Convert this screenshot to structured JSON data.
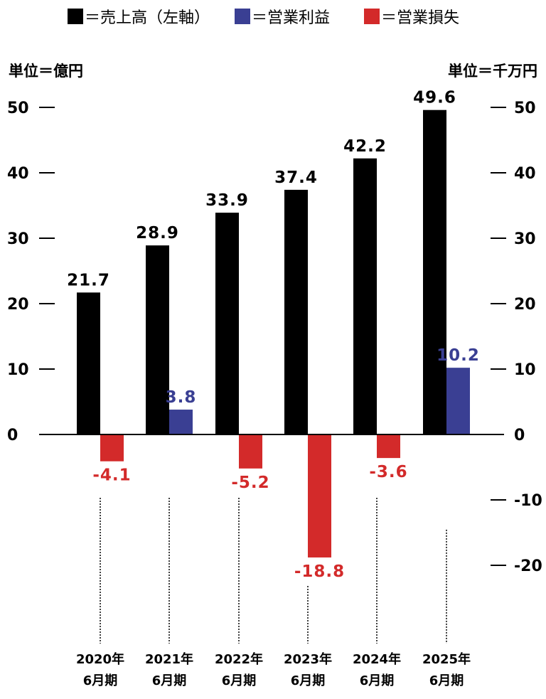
{
  "chart_data": {
    "type": "bar",
    "title": "",
    "legend": {
      "placement": "top",
      "entries": [
        {
          "key": "sales",
          "label": "＝売上高（左軸）",
          "color": "#000000"
        },
        {
          "key": "profit",
          "label": "＝営業利益",
          "color": "#3a3f93"
        },
        {
          "key": "loss",
          "label": "＝営業損失",
          "color": "#d32a2a"
        }
      ]
    },
    "left_axis": {
      "unit_label": "単位＝億円",
      "ticks": [
        0,
        10,
        20,
        30,
        40,
        50
      ],
      "tick_labels": [
        "0",
        "10",
        "20",
        "30",
        "40",
        "50"
      ],
      "ylim": [
        -20,
        50
      ]
    },
    "right_axis": {
      "unit_label": "単位＝千万円",
      "ticks": [
        -20,
        -10,
        0,
        10,
        20,
        30,
        40,
        50
      ],
      "tick_labels": [
        "-20",
        "-10",
        "0",
        "10",
        "20",
        "30",
        "40",
        "50"
      ],
      "ylim": [
        -20,
        50
      ]
    },
    "categories": [
      [
        "2020年",
        "6月期"
      ],
      [
        "2021年",
        "6月期"
      ],
      [
        "2022年",
        "6月期"
      ],
      [
        "2023年",
        "6月期"
      ],
      [
        "2024年",
        "6月期"
      ],
      [
        "2025年",
        "6月期"
      ]
    ],
    "series": [
      {
        "name": "売上高",
        "axis": "left",
        "color": "#000000",
        "values": [
          21.7,
          28.9,
          33.9,
          37.4,
          42.2,
          49.6
        ],
        "labels": [
          "21.7",
          "28.9",
          "33.9",
          "37.4",
          "42.2",
          "49.6"
        ]
      },
      {
        "name": "営業利益・営業損失",
        "axis": "right",
        "values": [
          -4.1,
          3.8,
          -5.2,
          -18.8,
          -3.6,
          10.2
        ],
        "labels": [
          "-4.1",
          "3.8",
          "-5.2",
          "-18.8",
          "-3.6",
          "10.2"
        ],
        "positive_color": "#3a3f93",
        "negative_color": "#d32a2a"
      }
    ],
    "grid": false
  }
}
